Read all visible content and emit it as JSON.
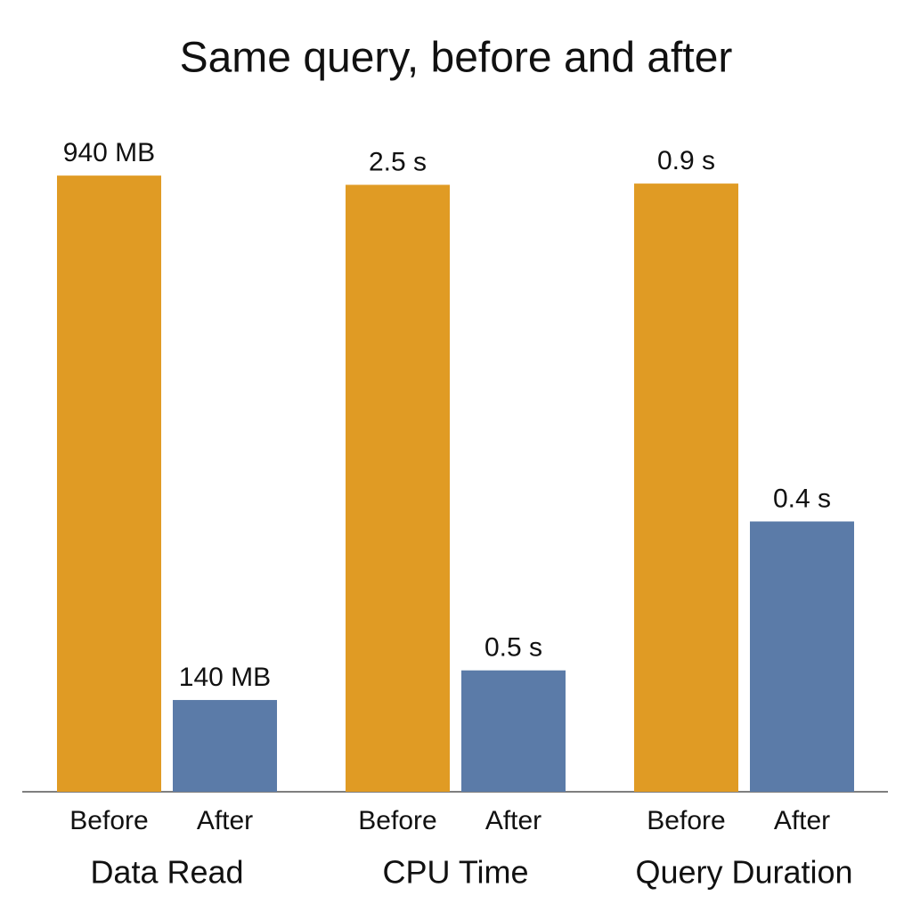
{
  "title": "Same query, before and after",
  "chart_data": [
    {
      "type": "bar",
      "xlabel": "Data Read",
      "categories": [
        "Before",
        "After"
      ],
      "values": [
        940,
        140
      ],
      "value_labels": [
        "940 MB",
        "140 MB"
      ],
      "colors": [
        "#e09b24",
        "#5b7ba8"
      ],
      "ylim": [
        0,
        1000
      ]
    },
    {
      "type": "bar",
      "xlabel": "CPU Time",
      "categories": [
        "Before",
        "After"
      ],
      "values": [
        2.5,
        0.5
      ],
      "value_labels": [
        "2.5 s",
        "0.5 s"
      ],
      "colors": [
        "#e09b24",
        "#5b7ba8"
      ],
      "ylim": [
        0,
        2.7
      ]
    },
    {
      "type": "bar",
      "xlabel": "Query Duration",
      "categories": [
        "Before",
        "After"
      ],
      "values": [
        0.9,
        0.4
      ],
      "value_labels": [
        "0.9 s",
        "0.4 s"
      ],
      "colors": [
        "#e09b24",
        "#5b7ba8"
      ],
      "ylim": [
        0,
        0.97
      ]
    }
  ]
}
